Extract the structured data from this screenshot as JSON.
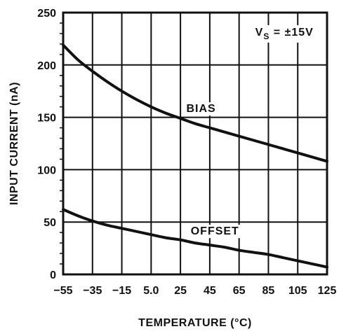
{
  "chart_data": {
    "type": "line",
    "xlabel": "TEMPERATURE (°C)",
    "ylabel": "INPUT CURRENT (nA)",
    "xlim": [
      -55,
      125
    ],
    "ylim": [
      0,
      250
    ],
    "x_ticks": [
      -55,
      -35,
      -15,
      5,
      25,
      45,
      65,
      85,
      105,
      125
    ],
    "x_tick_labels": [
      "−55",
      "−35",
      "−15",
      "5.0",
      "25",
      "45",
      "65",
      "85",
      "105",
      "125"
    ],
    "y_ticks": [
      0,
      50,
      100,
      150,
      200,
      250
    ],
    "y_tick_labels": [
      "0",
      "50",
      "100",
      "150",
      "200",
      "250"
    ],
    "grid": true,
    "series": [
      {
        "name": "BIAS",
        "x": [
          -55,
          -45,
          -35,
          -25,
          -15,
          -5,
          5,
          15,
          25,
          35,
          45,
          55,
          65,
          75,
          85,
          95,
          105,
          115,
          125
        ],
        "values": [
          219,
          205,
          194,
          184,
          175,
          167,
          160,
          154,
          149,
          144,
          140,
          136,
          132,
          128,
          124,
          120,
          116,
          112,
          108
        ]
      },
      {
        "name": "OFFSET",
        "x": [
          -55,
          -45,
          -35,
          -25,
          -15,
          -5,
          5,
          15,
          25,
          35,
          45,
          55,
          65,
          75,
          85,
          95,
          105,
          115,
          125
        ],
        "values": [
          62,
          56,
          51,
          47,
          44,
          41,
          38,
          35,
          33,
          30,
          28,
          26,
          23,
          21,
          19,
          16,
          13,
          10,
          7
        ]
      }
    ],
    "annotations": {
      "bias_label": "BIAS",
      "offset_label": "OFFSET",
      "condition_main": "V",
      "condition_sub": "S",
      "condition_rest": " = ±15V"
    }
  }
}
